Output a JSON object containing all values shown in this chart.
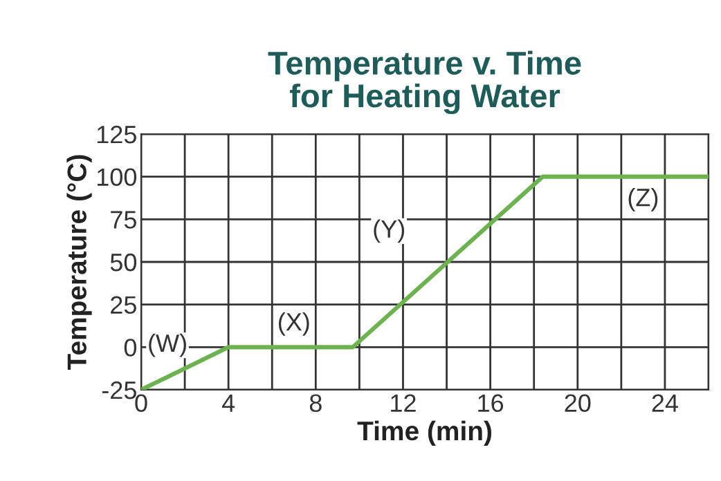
{
  "chart_data": {
    "type": "line",
    "title": "Temperature v. Time\nfor Heating Water",
    "xlabel": "Time (min)",
    "ylabel": "Temperature (°C)",
    "x": [
      0,
      4,
      9.7,
      18.4,
      26
    ],
    "series": [
      {
        "color": "#6cb24f",
        "values": [
          -25,
          0,
          0,
          100,
          100
        ]
      }
    ],
    "xlim": [
      0,
      26
    ],
    "ylim": [
      -25,
      125
    ],
    "xticks": [
      0,
      {
        "value": 2,
        "label": null
      },
      4,
      {
        "value": 6,
        "label": null
      },
      8,
      {
        "value": 10,
        "label": null
      },
      12,
      {
        "value": 14,
        "label": null
      },
      16,
      {
        "value": 18,
        "label": null
      },
      20,
      {
        "value": 22,
        "label": null
      },
      24,
      {
        "value": 26,
        "label": null
      }
    ],
    "yticks": [
      -25,
      0,
      25,
      50,
      75,
      100,
      125
    ],
    "annotations": [
      {
        "text": "(W)",
        "x": 2,
        "y": -12.5
      },
      {
        "text": "(X)",
        "x": 7,
        "y": 0
      },
      {
        "text": "(Y)",
        "x": 14,
        "y": 50
      },
      {
        "text": "(Z)",
        "x": 23,
        "y": 100
      }
    ],
    "grid": true,
    "legend": false,
    "marker": "none",
    "line_style": "solid"
  }
}
